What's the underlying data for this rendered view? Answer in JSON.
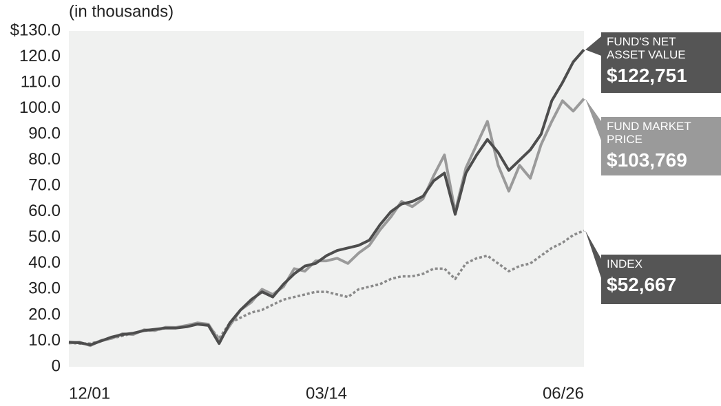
{
  "chart_data": {
    "type": "line",
    "subtitle": "(in thousands)",
    "categories": [
      "12/01",
      null,
      null,
      null,
      null,
      null,
      null,
      null,
      null,
      null,
      null,
      null,
      null,
      null,
      null,
      null,
      null,
      null,
      null,
      null,
      null,
      null,
      null,
      null,
      "03/14",
      null,
      null,
      null,
      null,
      null,
      null,
      null,
      null,
      null,
      null,
      null,
      null,
      null,
      null,
      null,
      null,
      null,
      null,
      null,
      null,
      null,
      null,
      null,
      "06/26"
    ],
    "series": [
      {
        "name": "FUND'S NET ASSET VALUE",
        "color": "#4d4d4d",
        "dash": false,
        "values": [
          9.5,
          9.3,
          8.5,
          10,
          11.5,
          12.5,
          13,
          14,
          14.5,
          15,
          15,
          15.5,
          16.5,
          16,
          9,
          17,
          22,
          26,
          29,
          27,
          32,
          36,
          39,
          40,
          43,
          45,
          46,
          47,
          49,
          55,
          60,
          63,
          64,
          66,
          72,
          75,
          59,
          75,
          82,
          88,
          83,
          76,
          80,
          84,
          90,
          103,
          110,
          118,
          122.751
        ],
        "value_labels": [
          null,
          null,
          null,
          null,
          null,
          null,
          null,
          null,
          null,
          null,
          null,
          null,
          null,
          null,
          null,
          null,
          null,
          null,
          null,
          null,
          null,
          null,
          null,
          null,
          null,
          null,
          null,
          null,
          null,
          null,
          null,
          null,
          null,
          null,
          null,
          null,
          null,
          null,
          null,
          null,
          null,
          null,
          null,
          null,
          null,
          null,
          null,
          null,
          "$122,751"
        ]
      },
      {
        "name": "FUND MARKET PRICE",
        "color": "#9a9a9a",
        "dash": false,
        "values": [
          9.2,
          9.5,
          8.2,
          10.2,
          11,
          12.8,
          12.5,
          14.3,
          14,
          15.3,
          15.2,
          16,
          17,
          16.5,
          10,
          16,
          22,
          25,
          30,
          28,
          31,
          38,
          37,
          41,
          41,
          42,
          40,
          44,
          47,
          53,
          58,
          64,
          62,
          65,
          74,
          82,
          60,
          77,
          86,
          95,
          78,
          68,
          78,
          73,
          86,
          95,
          103,
          99,
          103.769
        ],
        "value_labels": [
          null,
          null,
          null,
          null,
          null,
          null,
          null,
          null,
          null,
          null,
          null,
          null,
          null,
          null,
          null,
          null,
          null,
          null,
          null,
          null,
          null,
          null,
          null,
          null,
          null,
          null,
          null,
          null,
          null,
          null,
          null,
          null,
          null,
          null,
          null,
          null,
          null,
          null,
          null,
          null,
          null,
          null,
          null,
          null,
          null,
          null,
          null,
          null,
          "$103,769"
        ]
      },
      {
        "name": "INDEX",
        "color": "#8a8a8a",
        "dash": true,
        "values": [
          9.3,
          9,
          9,
          10,
          11,
          12,
          13,
          14,
          14,
          15,
          15,
          16,
          16.5,
          16,
          11,
          17,
          19,
          21,
          22,
          24,
          26,
          27,
          28,
          29,
          29,
          28,
          27,
          30,
          31,
          32,
          34,
          35,
          35,
          36,
          38,
          38,
          34,
          40,
          42,
          43,
          40,
          37,
          39,
          40,
          43,
          46,
          48,
          51,
          52.667
        ],
        "value_labels": [
          null,
          null,
          null,
          null,
          null,
          null,
          null,
          null,
          null,
          null,
          null,
          null,
          null,
          null,
          null,
          null,
          null,
          null,
          null,
          null,
          null,
          null,
          null,
          null,
          null,
          null,
          null,
          null,
          null,
          null,
          null,
          null,
          null,
          null,
          null,
          null,
          null,
          null,
          null,
          null,
          null,
          null,
          null,
          null,
          null,
          null,
          null,
          null,
          "$52,667"
        ]
      }
    ],
    "ylim": [
      0,
      130
    ],
    "yticks": [
      0,
      {
        "value": 10,
        "label": "10.0"
      },
      {
        "value": 20,
        "label": "20.0"
      },
      {
        "value": 30,
        "label": "30.0"
      },
      {
        "value": 40,
        "label": "40.0"
      },
      {
        "value": 50,
        "label": "50.0"
      },
      {
        "value": 60,
        "label": "60.0"
      },
      {
        "value": 70,
        "label": "70.0"
      },
      {
        "value": 80,
        "label": "80.0"
      },
      {
        "value": 90,
        "label": "90.0"
      },
      {
        "value": 100,
        "label": "100.0"
      },
      {
        "value": 110,
        "label": "110.0"
      },
      {
        "value": 120,
        "label": "120.0"
      },
      {
        "value": 130,
        "label": "$130.0"
      }
    ],
    "grid": false,
    "background": "#f0f1f0"
  }
}
